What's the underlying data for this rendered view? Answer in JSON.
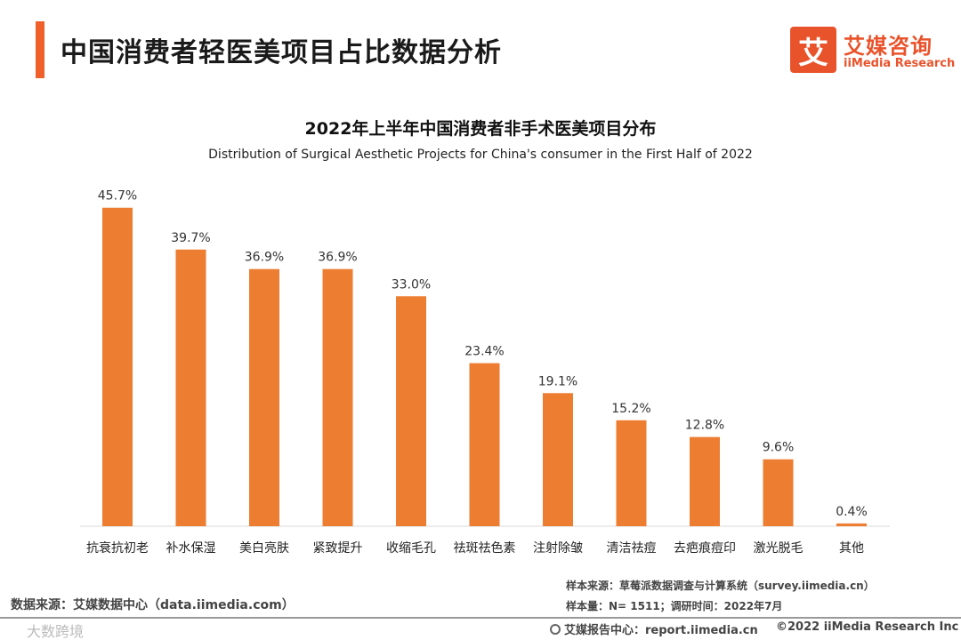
{
  "header": {
    "title": "中国消费者轻医美项目占比数据分析",
    "logo_mark": "艾",
    "logo_cn": "艾媒咨询",
    "logo_en": "iiMedia Research"
  },
  "chart_data": {
    "type": "bar",
    "title": "2022年上半年中国消费者非手术医美项目分布",
    "subtitle": "Distribution of Surgical Aesthetic Projects for China's consumer in the First Half of 2022",
    "categories": [
      "抗衰抗初老",
      "补水保湿",
      "美白亮肤",
      "紧致提升",
      "收缩毛孔",
      "祛斑祛色素",
      "注射除皱",
      "清洁祛痘",
      "去疤痕痘印",
      "激光脱毛",
      "其他"
    ],
    "values": [
      45.7,
      39.7,
      36.9,
      36.9,
      33.0,
      23.4,
      19.1,
      15.2,
      12.8,
      9.6,
      0.4
    ],
    "value_labels": [
      "45.7%",
      "39.7%",
      "36.9%",
      "36.9%",
      "33.0%",
      "23.4%",
      "19.1%",
      "15.2%",
      "12.8%",
      "9.6%",
      "0.4%"
    ],
    "unit": "%",
    "ylim": [
      0,
      50
    ],
    "grid": false,
    "bar_color": "#ed7d31"
  },
  "footer": {
    "source": "数据来源：艾媒数据中心（data.iimedia.com）",
    "sample_source": "样本来源：草莓派数据调查与计算系统（survey.iimedia.cn）",
    "sample_size": "样本量：N= 1511；调研时间：2022年7月",
    "watermark": "大数跨境",
    "report_center": "艾媒报告中心：report.iimedia.cn",
    "copyright": "©2022  iiMedia Research  Inc"
  },
  "colors": {
    "accent": "#f0602a",
    "brand": "#e9532b",
    "bar": "#ed7d31"
  }
}
